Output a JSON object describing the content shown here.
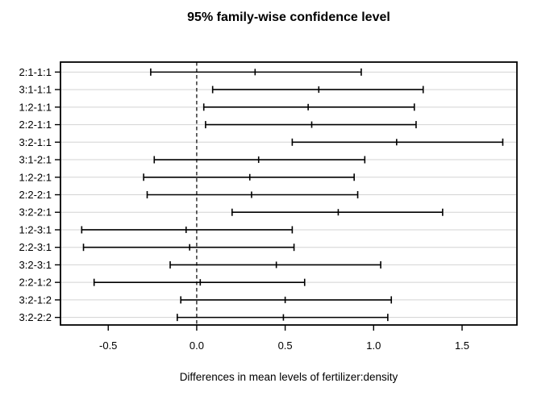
{
  "chart_data": {
    "type": "errorbar_h",
    "title": "95% family-wise confidence level",
    "xlabel": "Differences in mean levels of fertilizer:density",
    "ylabel": "",
    "legend": "none",
    "grid": "horizontal-lightgray",
    "zero_line": {
      "x": 0.0,
      "style": "dashed"
    },
    "xlim": [
      -0.77,
      1.81
    ],
    "x_ticks": [
      -0.5,
      0.0,
      0.5,
      1.0,
      1.5
    ],
    "x_tick_labels": [
      "-0.5",
      "0.0",
      "0.5",
      "1.0",
      "1.5"
    ],
    "comparisons": [
      {
        "label": "2:1-1:1",
        "diff": 0.33,
        "lwr": -0.26,
        "upr": 0.93
      },
      {
        "label": "3:1-1:1",
        "diff": 0.69,
        "lwr": 0.09,
        "upr": 1.28
      },
      {
        "label": "1:2-1:1",
        "diff": 0.63,
        "lwr": 0.04,
        "upr": 1.23
      },
      {
        "label": "2:2-1:1",
        "diff": 0.65,
        "lwr": 0.05,
        "upr": 1.24
      },
      {
        "label": "3:2-1:1",
        "diff": 1.13,
        "lwr": 0.54,
        "upr": 1.73
      },
      {
        "label": "3:1-2:1",
        "diff": 0.35,
        "lwr": -0.24,
        "upr": 0.95
      },
      {
        "label": "1:2-2:1",
        "diff": 0.3,
        "lwr": -0.3,
        "upr": 0.89
      },
      {
        "label": "2:2-2:1",
        "diff": 0.31,
        "lwr": -0.28,
        "upr": 0.91
      },
      {
        "label": "3:2-2:1",
        "diff": 0.8,
        "lwr": 0.2,
        "upr": 1.39
      },
      {
        "label": "1:2-3:1",
        "diff": -0.06,
        "lwr": -0.65,
        "upr": 0.54
      },
      {
        "label": "2:2-3:1",
        "diff": -0.04,
        "lwr": -0.64,
        "upr": 0.55
      },
      {
        "label": "3:2-3:1",
        "diff": 0.45,
        "lwr": -0.15,
        "upr": 1.04
      },
      {
        "label": "2:2-1:2",
        "diff": 0.02,
        "lwr": -0.58,
        "upr": 0.61
      },
      {
        "label": "3:2-1:2",
        "diff": 0.5,
        "lwr": -0.09,
        "upr": 1.1
      },
      {
        "label": "3:2-2:2",
        "diff": 0.49,
        "lwr": -0.11,
        "upr": 1.08
      }
    ],
    "colors": {
      "background": "#ffffff",
      "interval": "#000000",
      "frame": "#000000",
      "grid_line": "#d3d3d3",
      "zero_line": "#000000",
      "text": "#000000"
    }
  }
}
